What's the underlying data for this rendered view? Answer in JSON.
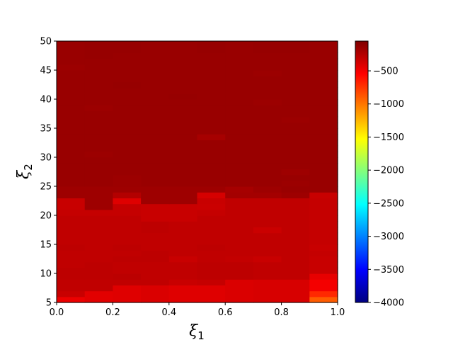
{
  "chart_data": {
    "type": "heatmap",
    "title": "",
    "xlabel": {
      "base": "ξ",
      "sub": "1"
    },
    "ylabel": {
      "base": "ξ",
      "sub": "2"
    },
    "x_edges": [
      0.0,
      0.1,
      0.2,
      0.3,
      0.4,
      0.5,
      0.6,
      0.7,
      0.8,
      0.9,
      1.0
    ],
    "xlim": [
      0.0,
      1.0
    ],
    "ylim": [
      5,
      50
    ],
    "x_ticks": [
      "0.0",
      "0.2",
      "0.4",
      "0.6",
      "0.8",
      "1.0"
    ],
    "y_ticks": [
      "5",
      "10",
      "15",
      "20",
      "25",
      "30",
      "35",
      "40",
      "45",
      "50"
    ],
    "y_tick_values": [
      5,
      10,
      15,
      20,
      25,
      30,
      35,
      40,
      45,
      50
    ],
    "x_tick_values": [
      0.0,
      0.2,
      0.4,
      0.6,
      0.8,
      1.0
    ],
    "colorbar": {
      "colormap": "jet",
      "vmin": -4000,
      "vmax": -50,
      "ticks": [
        -500,
        -1000,
        -1500,
        -2000,
        -2500,
        -3000,
        -3500,
        -4000
      ],
      "tick_labels": [
        "−500",
        "−1000",
        "−1500",
        "−2000",
        "−2500",
        "−3000",
        "−3500",
        "−4000"
      ]
    },
    "rows": [
      {
        "y0": 5,
        "y1": 6,
        "values": [
          -470,
          -430,
          -420,
          -400,
          -420,
          -420,
          -400,
          -390,
          -390,
          -900
        ]
      },
      {
        "y0": 6,
        "y1": 7,
        "values": [
          -330,
          -430,
          -420,
          -400,
          -420,
          -420,
          -400,
          -390,
          -390,
          -700
        ]
      },
      {
        "y0": 7,
        "y1": 8,
        "values": [
          -300,
          -300,
          -420,
          -400,
          -420,
          -420,
          -400,
          -390,
          -390,
          -500
        ]
      },
      {
        "y0": 8,
        "y1": 9,
        "values": [
          -300,
          -300,
          -300,
          -300,
          -330,
          -320,
          -400,
          -390,
          -390,
          -500
        ]
      },
      {
        "y0": 9,
        "y1": 10,
        "values": [
          -290,
          -290,
          -280,
          -300,
          -300,
          -290,
          -290,
          -300,
          -300,
          -450
        ]
      },
      {
        "y0": 10,
        "y1": 11,
        "values": [
          -290,
          -290,
          -300,
          -300,
          -300,
          -290,
          -290,
          -300,
          -300,
          -330
        ]
      },
      {
        "y0": 11,
        "y1": 12,
        "values": [
          -300,
          -290,
          -300,
          -300,
          -300,
          -290,
          -290,
          -300,
          -300,
          -330
        ]
      },
      {
        "y0": 12,
        "y1": 13,
        "values": [
          -300,
          -300,
          -290,
          -290,
          -330,
          -300,
          -310,
          -330,
          -300,
          -330
        ]
      },
      {
        "y0": 13,
        "y1": 14,
        "values": [
          -300,
          -300,
          -300,
          -290,
          -300,
          -300,
          -300,
          -300,
          -300,
          -320
        ]
      },
      {
        "y0": 14,
        "y1": 15,
        "values": [
          -290,
          -300,
          -290,
          -300,
          -300,
          -290,
          -300,
          -300,
          -300,
          -330
        ]
      },
      {
        "y0": 15,
        "y1": 16,
        "values": [
          -300,
          -300,
          -300,
          -300,
          -300,
          -300,
          -300,
          -300,
          -300,
          -320
        ]
      },
      {
        "y0": 16,
        "y1": 17,
        "values": [
          -300,
          -300,
          -300,
          -300,
          -300,
          -300,
          -300,
          -300,
          -300,
          -320
        ]
      },
      {
        "y0": 17,
        "y1": 18,
        "values": [
          -300,
          -300,
          -300,
          -290,
          -300,
          -300,
          -300,
          -340,
          -300,
          -320
        ]
      },
      {
        "y0": 18,
        "y1": 19,
        "values": [
          -300,
          -300,
          -300,
          -290,
          -300,
          -300,
          -300,
          -300,
          -300,
          -320
        ]
      },
      {
        "y0": 19,
        "y1": 20,
        "values": [
          -300,
          -300,
          -300,
          -330,
          -330,
          -300,
          -300,
          -300,
          -300,
          -320
        ]
      },
      {
        "y0": 20,
        "y1": 21,
        "values": [
          -320,
          -320,
          -320,
          -330,
          -330,
          -320,
          -300,
          -300,
          -300,
          -320
        ]
      },
      {
        "y0": 21,
        "y1": 22,
        "values": [
          -330,
          -170,
          -320,
          -330,
          -330,
          -340,
          -300,
          -300,
          -300,
          -320
        ]
      },
      {
        "y0": 22,
        "y1": 23,
        "values": [
          -330,
          -170,
          -420,
          -170,
          -170,
          -330,
          -300,
          -300,
          -300,
          -320
        ]
      },
      {
        "y0": 23,
        "y1": 24,
        "values": [
          -170,
          -170,
          -250,
          -170,
          -170,
          -380,
          -190,
          -190,
          -170,
          -330
        ]
      },
      {
        "y0": 24,
        "y1": 25,
        "values": [
          -170,
          -170,
          -170,
          -170,
          -170,
          -170,
          -200,
          -170,
          -150,
          -150
        ]
      },
      {
        "y0": 25,
        "y1": 26,
        "values": [
          -150,
          -150,
          -160,
          -150,
          -150,
          -150,
          -150,
          -150,
          -160,
          -150
        ]
      },
      {
        "y0": 26,
        "y1": 27,
        "values": [
          -150,
          -150,
          -160,
          -150,
          -150,
          -150,
          -150,
          -150,
          -150,
          -150
        ]
      },
      {
        "y0": 27,
        "y1": 28,
        "values": [
          -150,
          -150,
          -150,
          -150,
          -150,
          -150,
          -150,
          -150,
          -170,
          -150
        ]
      },
      {
        "y0": 28,
        "y1": 29,
        "values": [
          -150,
          -150,
          -150,
          -150,
          -150,
          -150,
          -150,
          -150,
          -150,
          -150
        ]
      },
      {
        "y0": 29,
        "y1": 30,
        "values": [
          -150,
          -150,
          -150,
          -150,
          -150,
          -150,
          -150,
          -150,
          -150,
          -150
        ]
      },
      {
        "y0": 30,
        "y1": 31,
        "values": [
          -150,
          -160,
          -150,
          -150,
          -150,
          -150,
          -150,
          -150,
          -150,
          -150
        ]
      },
      {
        "y0": 31,
        "y1": 32,
        "values": [
          -150,
          -150,
          -150,
          -150,
          -150,
          -150,
          -150,
          -150,
          -150,
          -150
        ]
      },
      {
        "y0": 32,
        "y1": 33,
        "values": [
          -150,
          -150,
          -150,
          -150,
          -150,
          -150,
          -150,
          -150,
          -150,
          -150
        ]
      },
      {
        "y0": 33,
        "y1": 34,
        "values": [
          -150,
          -150,
          -150,
          -150,
          -150,
          -200,
          -150,
          -150,
          -150,
          -150
        ]
      },
      {
        "y0": 34,
        "y1": 35,
        "values": [
          -150,
          -150,
          -150,
          -150,
          -150,
          -150,
          -150,
          -150,
          -150,
          -150
        ]
      },
      {
        "y0": 35,
        "y1": 36,
        "values": [
          -150,
          -150,
          -150,
          -150,
          -150,
          -150,
          -150,
          -150,
          -150,
          -150
        ]
      },
      {
        "y0": 36,
        "y1": 37,
        "values": [
          -150,
          -150,
          -150,
          -150,
          -150,
          -150,
          -150,
          -150,
          -160,
          -150
        ]
      },
      {
        "y0": 37,
        "y1": 38,
        "values": [
          -150,
          -150,
          -150,
          -150,
          -150,
          -150,
          -150,
          -150,
          -150,
          -150
        ]
      },
      {
        "y0": 38,
        "y1": 39,
        "values": [
          -150,
          -160,
          -150,
          -150,
          -150,
          -150,
          -150,
          -150,
          -150,
          -150
        ]
      },
      {
        "y0": 39,
        "y1": 40,
        "values": [
          -150,
          -150,
          -150,
          -150,
          -150,
          -150,
          -150,
          -160,
          -150,
          -150
        ]
      },
      {
        "y0": 40,
        "y1": 41,
        "values": [
          -150,
          -150,
          -150,
          -150,
          -140,
          -150,
          -150,
          -150,
          -150,
          -150
        ]
      },
      {
        "y0": 41,
        "y1": 42,
        "values": [
          -150,
          -150,
          -150,
          -150,
          -150,
          -150,
          -150,
          -150,
          -150,
          -150
        ]
      },
      {
        "y0": 42,
        "y1": 43,
        "values": [
          -150,
          -150,
          -140,
          -150,
          -150,
          -150,
          -150,
          -150,
          -150,
          -150
        ]
      },
      {
        "y0": 43,
        "y1": 44,
        "values": [
          -150,
          -150,
          -150,
          -150,
          -150,
          -150,
          -150,
          -150,
          -150,
          -150
        ]
      },
      {
        "y0": 44,
        "y1": 45,
        "values": [
          -150,
          -150,
          -150,
          -150,
          -150,
          -150,
          -150,
          -160,
          -150,
          -150
        ]
      },
      {
        "y0": 45,
        "y1": 46,
        "values": [
          -160,
          -150,
          -150,
          -150,
          -150,
          -150,
          -150,
          -150,
          -150,
          -150
        ]
      },
      {
        "y0": 46,
        "y1": 47,
        "values": [
          -150,
          -150,
          -150,
          -150,
          -150,
          -150,
          -150,
          -150,
          -150,
          -150
        ]
      },
      {
        "y0": 47,
        "y1": 48,
        "values": [
          -150,
          -140,
          -150,
          -150,
          -150,
          -150,
          -150,
          -150,
          -150,
          -150
        ]
      },
      {
        "y0": 48,
        "y1": 49,
        "values": [
          -150,
          -140,
          -140,
          -150,
          -150,
          -140,
          -150,
          -140,
          -140,
          -150
        ]
      },
      {
        "y0": 49,
        "y1": 50,
        "values": [
          -150,
          -140,
          -140,
          -150,
          -150,
          -140,
          -150,
          -140,
          -140,
          -150
        ]
      }
    ]
  }
}
